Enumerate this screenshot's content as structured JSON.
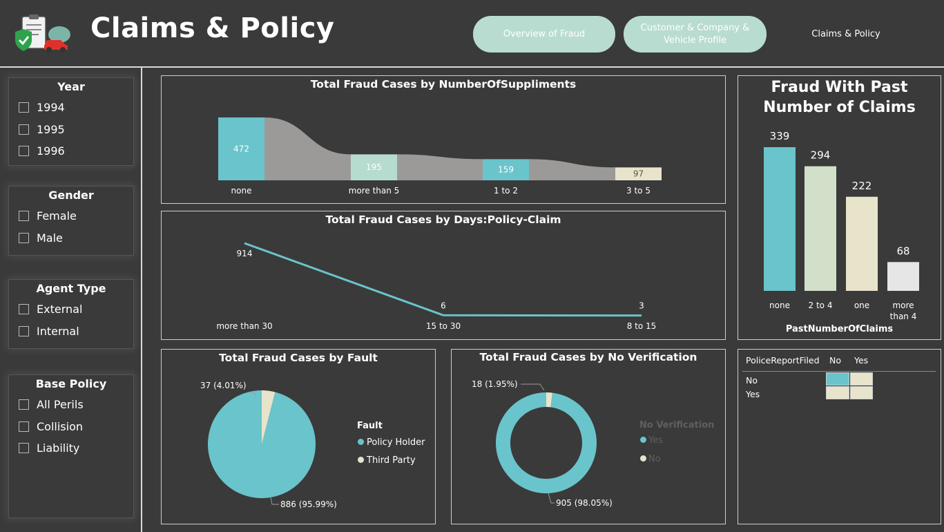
{
  "header": {
    "title": "Claims & Policy",
    "nav": [
      {
        "label": "Overview of Fraud"
      },
      {
        "label": "Customer & Company & Vehicle Profile"
      },
      {
        "label": "Claims & Policy"
      }
    ]
  },
  "slicers": [
    {
      "title": "Year",
      "items": [
        "1994",
        "1995",
        "1996"
      ]
    },
    {
      "title": "Gender",
      "items": [
        "Female",
        "Male"
      ]
    },
    {
      "title": "Agent Type",
      "items": [
        "External",
        "Internal"
      ]
    },
    {
      "title": "Base Policy",
      "items": [
        "All Perils",
        "Collision",
        "Liability"
      ]
    }
  ],
  "colors": {
    "teal": "#6ac4cb",
    "mint": "#b5dccf",
    "sage": "#d3e0c9",
    "cream": "#e8e4cb",
    "grey_flow": "#9c9a98",
    "light": "#e6e6e6",
    "background": "#3a3a3a"
  },
  "chart_data": [
    {
      "type": "bar",
      "title": "Total Fraud Cases by NumberOfSuppliments",
      "categories": [
        "none",
        "more than 5",
        "1 to 2",
        "3 to 5"
      ],
      "values": [
        472,
        195,
        159,
        97
      ]
    },
    {
      "type": "line",
      "title": "Total Fraud Cases by Days:Policy-Claim",
      "categories": [
        "more than 30",
        "15 to 30",
        "8 to 15"
      ],
      "values": [
        914,
        6,
        3
      ]
    },
    {
      "type": "pie",
      "title": "Total Fraud Cases by Fault",
      "legend_title": "Fault",
      "labels": [
        "Policy Holder",
        "Third Party"
      ],
      "values": [
        886,
        37
      ],
      "data_labels": [
        "886 (95.99%)",
        "37 (4.01%)"
      ]
    },
    {
      "type": "pie",
      "title": "Total Fraud Cases by No Verification",
      "legend_title": "No Verification",
      "labels": [
        "Yes",
        "No"
      ],
      "values": [
        905,
        18
      ],
      "data_labels": [
        "905 (98.05%)",
        "18 (1.95%)"
      ]
    },
    {
      "type": "bar",
      "title": "Fraud With Past Number of Claims",
      "xlabel": "PastNumberOfClaims",
      "categories": [
        "none",
        "2 to 4",
        "one",
        "more than 4"
      ],
      "values": [
        339,
        294,
        222,
        68
      ]
    },
    {
      "type": "heatmap",
      "row_header": "PoliceReportFiled",
      "columns": [
        "No",
        "Yes"
      ],
      "rows": [
        "No",
        "Yes"
      ]
    }
  ]
}
